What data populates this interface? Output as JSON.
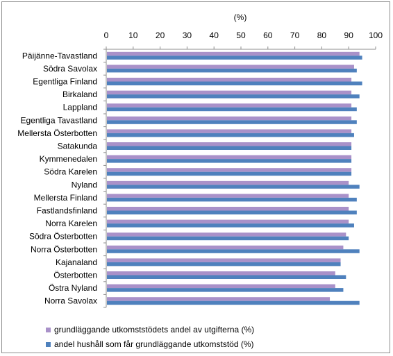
{
  "chart_data": {
    "type": "bar",
    "orientation": "horizontal",
    "unit_label": "(%)",
    "xlim": [
      0,
      100
    ],
    "xticks": [
      0,
      10,
      20,
      30,
      40,
      50,
      60,
      70,
      80,
      90,
      100
    ],
    "categories": [
      "Päijänne-Tavastland",
      "Södra Savolax",
      "Egentliga Finland",
      "Birkaland",
      "Lappland",
      "Egentliga Tavastland",
      "Mellersta Österbotten",
      "Satakunda",
      "Kymmenedalen",
      "Södra Karelen",
      "Nyland",
      "Mellersta Finland",
      "Fastlandsfinland",
      "Norra Karelen",
      "Södra Österbotten",
      "Norra Österbotten",
      "Kajanaland",
      "Österbotten",
      "Östra Nyland",
      "Norra Savolax"
    ],
    "series": [
      {
        "name": "grundläggande utkomststödets andel av utgifterna (%)",
        "color": "#a991c9",
        "values": [
          94,
          92,
          91,
          91,
          91,
          91,
          91,
          91,
          91,
          91,
          90,
          90,
          90,
          90,
          89,
          88,
          87,
          85,
          85,
          83
        ]
      },
      {
        "name": "andel hushåll som får grundläggande utkomststöd (%)",
        "color": "#4f81bd",
        "values": [
          95,
          93,
          95,
          94,
          93,
          93,
          92,
          91,
          91,
          91,
          94,
          93,
          93,
          92,
          90,
          94,
          87,
          89,
          88,
          94
        ]
      }
    ],
    "grid": false,
    "legend_position": "bottom"
  }
}
